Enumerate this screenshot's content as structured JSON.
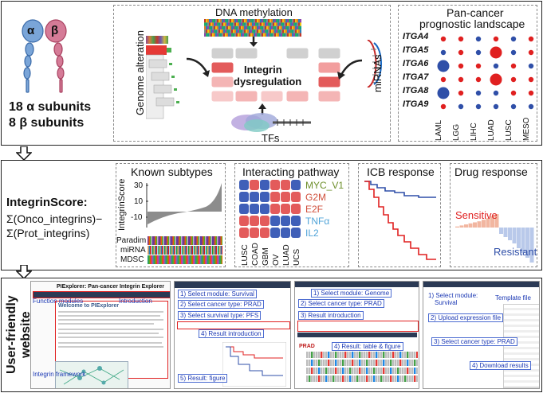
{
  "colors": {
    "red": "#e02020",
    "blue": "#2f4fa8",
    "grey": "#bdbdbd",
    "alpha": "#7aa5d8",
    "beta": "#d57b97",
    "accent": "#1c39b4"
  },
  "top": {
    "alpha_label": "α",
    "beta_label": "β",
    "alpha_count": "18 α subunits",
    "beta_count": "8 β subunits",
    "dna_methylation": "DNA methylation",
    "genome_alteration": "Genome alteration",
    "center_line1": "Integrin",
    "center_line2": "dysregulation",
    "mirnas": "miRNAs",
    "tfs": "TFs",
    "landscape_title_line1": "Pan-cancer",
    "landscape_title_line2": "prognostic landscape",
    "genes": [
      "ITGA4",
      "ITGA5",
      "ITGA6",
      "ITGA7",
      "ITGA8",
      "ITGA9"
    ],
    "cancers": [
      "LAML",
      "LGG",
      "LIHC",
      "LUAD",
      "LUSC",
      "MESO"
    ],
    "dots": [
      [
        "r",
        "r",
        "b",
        "r",
        "b",
        "r"
      ],
      [
        "b",
        "r",
        "b",
        "R",
        "b",
        "r"
      ],
      [
        "B",
        "r",
        "r",
        "b",
        "r",
        "b"
      ],
      [
        "r",
        "r",
        "r",
        "R",
        "r",
        "r"
      ],
      [
        "B",
        "r",
        "b",
        "b",
        "r",
        "r"
      ],
      [
        "r",
        "b",
        "b",
        "b",
        "b",
        "b"
      ]
    ]
  },
  "middle": {
    "score_title": "IntegrinScore:",
    "score_line1": "Σ(Onco_integrins)−",
    "score_line2": "Σ(Prot_integrins)",
    "known_subtypes": "Known subtypes",
    "ylabel": "IntegrinScore",
    "yticks": [
      "30",
      "10",
      "-10"
    ],
    "subtype_rows": [
      "Paradim",
      "miRNA",
      "MDSC"
    ],
    "interacting_pathway": "Interacting pathway",
    "pathways": [
      {
        "name": "MYC_V1",
        "color": "#6d8f2a"
      },
      {
        "name": "G2M",
        "color": "#d04f3b"
      },
      {
        "name": "E2F",
        "color": "#d04f3b"
      },
      {
        "name": "TNFα",
        "color": "#4fa3d8"
      },
      {
        "name": "IL2",
        "color": "#4fa3d8"
      }
    ],
    "pathway_cancers": [
      "LUSC",
      "COAD",
      "GBM",
      "OV",
      "LUAD",
      "UCS"
    ],
    "icb_response": "ICB response",
    "drug_response": "Drug response",
    "sensitive": "Sensitive",
    "resistant": "Resistant"
  },
  "bottom": {
    "website_label_line1": "User-friendly",
    "website_label_line2": "website",
    "s1": {
      "title": "PIExplorer: Pan-cancer Integrin Explorer",
      "function_modules": "Function modules",
      "introduction": "Introduction",
      "integrin_framework": "Integrin framework",
      "page_heading": "Welcome to PIExplorer"
    },
    "s2": {
      "step1": "1) Select module: Survival",
      "step2": "2) Select cancer type: PRAD",
      "step3": "3) Select survival type: PFS",
      "step4": "4) Result introduction",
      "step5": "5) Result: figure"
    },
    "s3": {
      "step1": "1) Select module: Genome",
      "step2": "2) Select cancer type: PRAD",
      "step3": "3) Result introduction",
      "step4": "4) Result: table & figure",
      "prad": "PRAD"
    },
    "s4": {
      "step1a": "1) Select module:",
      "step1b": "Survival",
      "step2": "2) Upload expression file",
      "step3": "3) Select cancer type: PRAD",
      "step4": "4) Download results",
      "template": "Template file"
    }
  }
}
